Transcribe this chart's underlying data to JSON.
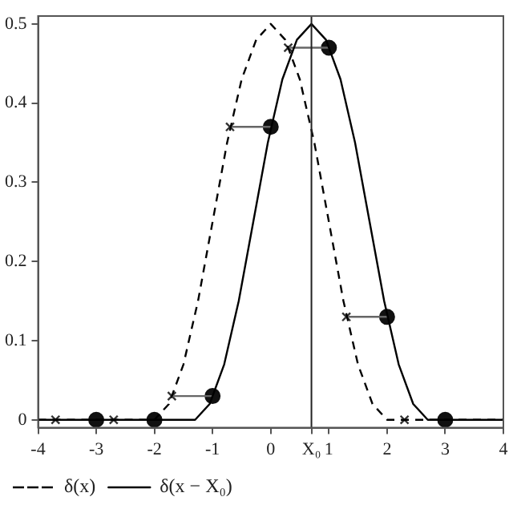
{
  "chart_data": {
    "type": "line",
    "series": [
      {
        "name": "δ(x)",
        "color": "#000000",
        "line_style": "dashed",
        "marker": "none",
        "x": [
          -4,
          -2,
          -1.75,
          -1.5,
          -1.25,
          -1,
          -0.75,
          -0.5,
          -0.25,
          0,
          0.25,
          0.5,
          0.75,
          1,
          1.25,
          1.5,
          1.75,
          2,
          4
        ],
        "values": [
          0,
          0,
          0.02,
          0.07,
          0.15,
          0.25,
          0.35,
          0.43,
          0.48,
          0.5,
          0.48,
          0.43,
          0.35,
          0.25,
          0.15,
          0.07,
          0.02,
          0,
          0
        ]
      },
      {
        "name": "δ(x − X₀)",
        "color": "#000000",
        "line_style": "solid",
        "marker": "none",
        "x": [
          -4,
          -1.3,
          -1.05,
          -0.8,
          -0.55,
          -0.3,
          -0.05,
          0.2,
          0.45,
          0.7,
          0.95,
          1.2,
          1.45,
          1.7,
          1.95,
          2.2,
          2.45,
          2.7,
          4
        ],
        "values": [
          0,
          0,
          0.02,
          0.07,
          0.15,
          0.25,
          0.35,
          0.43,
          0.48,
          0.5,
          0.48,
          0.43,
          0.35,
          0.25,
          0.15,
          0.07,
          0.02,
          0,
          0
        ]
      },
      {
        "color": "#666666",
        "line_style": "solid",
        "marker": "none",
        "x": [
          -1.7,
          -1
        ],
        "values": [
          0.03,
          0.03
        ]
      },
      {
        "color": "#666666",
        "line_style": "solid",
        "marker": "none",
        "x": [
          -0.7,
          0
        ],
        "values": [
          0.37,
          0.37
        ]
      },
      {
        "color": "#666666",
        "line_style": "solid",
        "marker": "none",
        "x": [
          0.3,
          1
        ],
        "values": [
          0.47,
          0.47
        ]
      },
      {
        "color": "#666666",
        "line_style": "solid",
        "marker": "none",
        "x": [
          1.3,
          2
        ],
        "values": [
          0.13,
          0.13
        ]
      },
      {
        "type": "scatter",
        "color": "#333333",
        "marker": "cross",
        "x": [
          -3.7,
          -2.7,
          -1.7,
          -0.7,
          0.3,
          1.3,
          2.3
        ],
        "values": [
          0,
          0,
          0.03,
          0.37,
          0.47,
          0.13,
          0
        ]
      },
      {
        "type": "scatter",
        "color": "#111111",
        "marker": "circle",
        "x": [
          -3,
          -2,
          -1,
          0,
          1,
          2,
          3
        ],
        "values": [
          0,
          0,
          0.03,
          0.37,
          0.47,
          0.13,
          0
        ]
      }
    ],
    "xlim": [
      -4,
      4
    ],
    "xticks": [
      -4,
      -3,
      -2,
      -1,
      0,
      {
        "value": 0.7,
        "label": "X₀"
      },
      1,
      2,
      3,
      4
    ],
    "ylim": [
      -0.01,
      0.51
    ],
    "yticks": [
      0,
      0.1,
      0.2,
      0.3,
      0.4,
      0.5
    ],
    "ref_lines": [
      {
        "axis": "x",
        "value": 0.7,
        "label": null,
        "color": "#222222"
      }
    ],
    "grid": false,
    "legend": "bottom left"
  }
}
